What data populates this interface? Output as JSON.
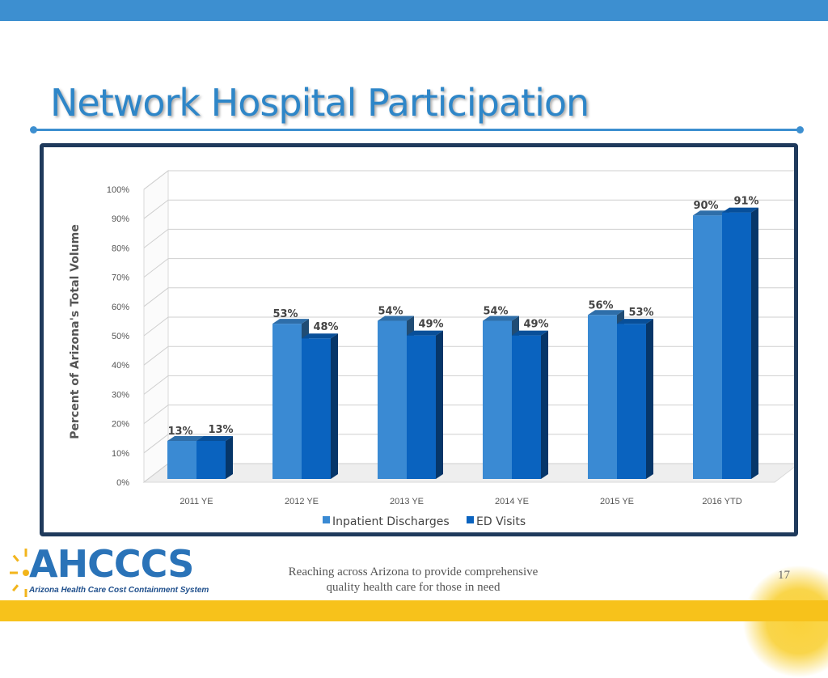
{
  "slide": {
    "title": "Network Hospital Participation",
    "footer_line1": "Reaching across Arizona to provide comprehensive",
    "footer_line2": "quality health care for those in need",
    "page_number": "17",
    "logo_text": "AHCCCS",
    "logo_subtitle": "Arizona Health Care Cost Containment System"
  },
  "colors": {
    "accent": "#3d8fd0",
    "title": "#2e86c8",
    "frame": "#1f3a5c",
    "inpatient": "#3a8ad3",
    "ed": "#0a63bf",
    "bottom_bar": "#f7c21b"
  },
  "chart_data": {
    "type": "bar",
    "title": "",
    "xlabel": "",
    "ylabel": "Percent of Arizona's Total Volume",
    "categories": [
      "2011 YE",
      "2012 YE",
      "2013 YE",
      "2014 YE",
      "2015 YE",
      "2016 YTD"
    ],
    "series": [
      {
        "name": "Inpatient Discharges",
        "values": [
          13,
          53,
          54,
          54,
          56,
          90
        ],
        "labels": [
          "13%",
          "53%",
          "54%",
          "54%",
          "56%",
          "90%"
        ]
      },
      {
        "name": "ED Visits",
        "values": [
          13,
          48,
          49,
          49,
          53,
          91
        ],
        "labels": [
          "13%",
          "48%",
          "49%",
          "49%",
          "53%",
          "91%"
        ]
      }
    ],
    "y_ticks": [
      0,
      10,
      20,
      30,
      40,
      50,
      60,
      70,
      80,
      90,
      100
    ],
    "y_tick_labels": [
      "0%",
      "10%",
      "20%",
      "30%",
      "40%",
      "50%",
      "60%",
      "70%",
      "80%",
      "90%",
      "100%"
    ],
    "ylim": [
      0,
      100
    ],
    "grid": true,
    "legend_position": "bottom",
    "style": "3d-clustered-column"
  }
}
